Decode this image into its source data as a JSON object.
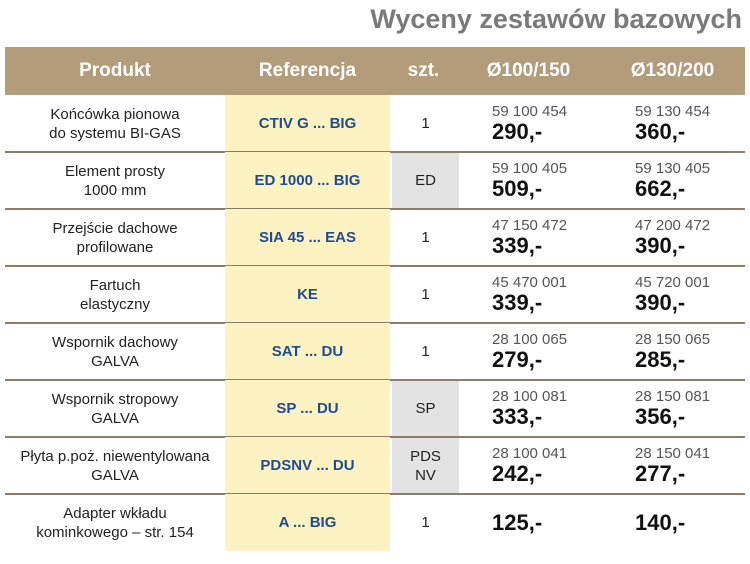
{
  "title": "Wyceny zestawów bazowych",
  "table": {
    "header": [
      "Produkt",
      "Referencja",
      "szt.",
      "Ø100/150",
      "Ø130/200"
    ],
    "rows": [
      {
        "product": [
          "Końcówka pionowa",
          "do systemu BI-GAS"
        ],
        "ref": "CTIV G ... BIG",
        "qty": [
          "1"
        ],
        "shaded": false,
        "p1": {
          "code": "59 100 454",
          "price": "290,-"
        },
        "p2": {
          "code": "59 130 454",
          "price": "360,-"
        }
      },
      {
        "product": [
          "Element prosty",
          "1000 mm"
        ],
        "ref": "ED 1000 ... BIG",
        "qty": [
          "ED"
        ],
        "shaded": true,
        "p1": {
          "code": "59 100 405",
          "price": "509,-"
        },
        "p2": {
          "code": "59 130 405",
          "price": "662,-"
        }
      },
      {
        "product": [
          "Przejście dachowe",
          "profilowane"
        ],
        "ref": "SIA 45 ... EAS",
        "qty": [
          "1"
        ],
        "shaded": false,
        "p1": {
          "code": "47 150 472",
          "price": "339,-"
        },
        "p2": {
          "code": "47 200 472",
          "price": "390,-"
        }
      },
      {
        "product": [
          "Fartuch",
          "elastyczny"
        ],
        "ref": "KE",
        "qty": [
          "1"
        ],
        "shaded": false,
        "p1": {
          "code": "45 470 001",
          "price": "339,-"
        },
        "p2": {
          "code": "45 720 001",
          "price": "390,-"
        }
      },
      {
        "product": [
          "Wspornik dachowy",
          "GALVA"
        ],
        "ref": "SAT ... DU",
        "qty": [
          "1"
        ],
        "shaded": false,
        "p1": {
          "code": "28 100 065",
          "price": "279,-"
        },
        "p2": {
          "code": "28 150 065",
          "price": "285,-"
        }
      },
      {
        "product": [
          "Wspornik stropowy",
          "GALVA"
        ],
        "ref": "SP ... DU",
        "qty": [
          "SP"
        ],
        "shaded": true,
        "p1": {
          "code": "28 100 081",
          "price": "333,-"
        },
        "p2": {
          "code": "28 150 081",
          "price": "356,-"
        }
      },
      {
        "product": [
          "Płyta p.poż. niewentylowana",
          "GALVA"
        ],
        "ref": "PDSNV ... DU",
        "qty": [
          "PDS",
          "NV"
        ],
        "shaded": true,
        "p1": {
          "code": "28 100 041",
          "price": "242,-"
        },
        "p2": {
          "code": "28 150 041",
          "price": "277,-"
        }
      },
      {
        "product": [
          "Adapter wkładu",
          "kominkowego – str. 154"
        ],
        "ref": "A ... BIG",
        "qty": [
          "1"
        ],
        "shaded": false,
        "p1": {
          "price": "125,-"
        },
        "p2": {
          "price": "140,-"
        }
      }
    ]
  }
}
